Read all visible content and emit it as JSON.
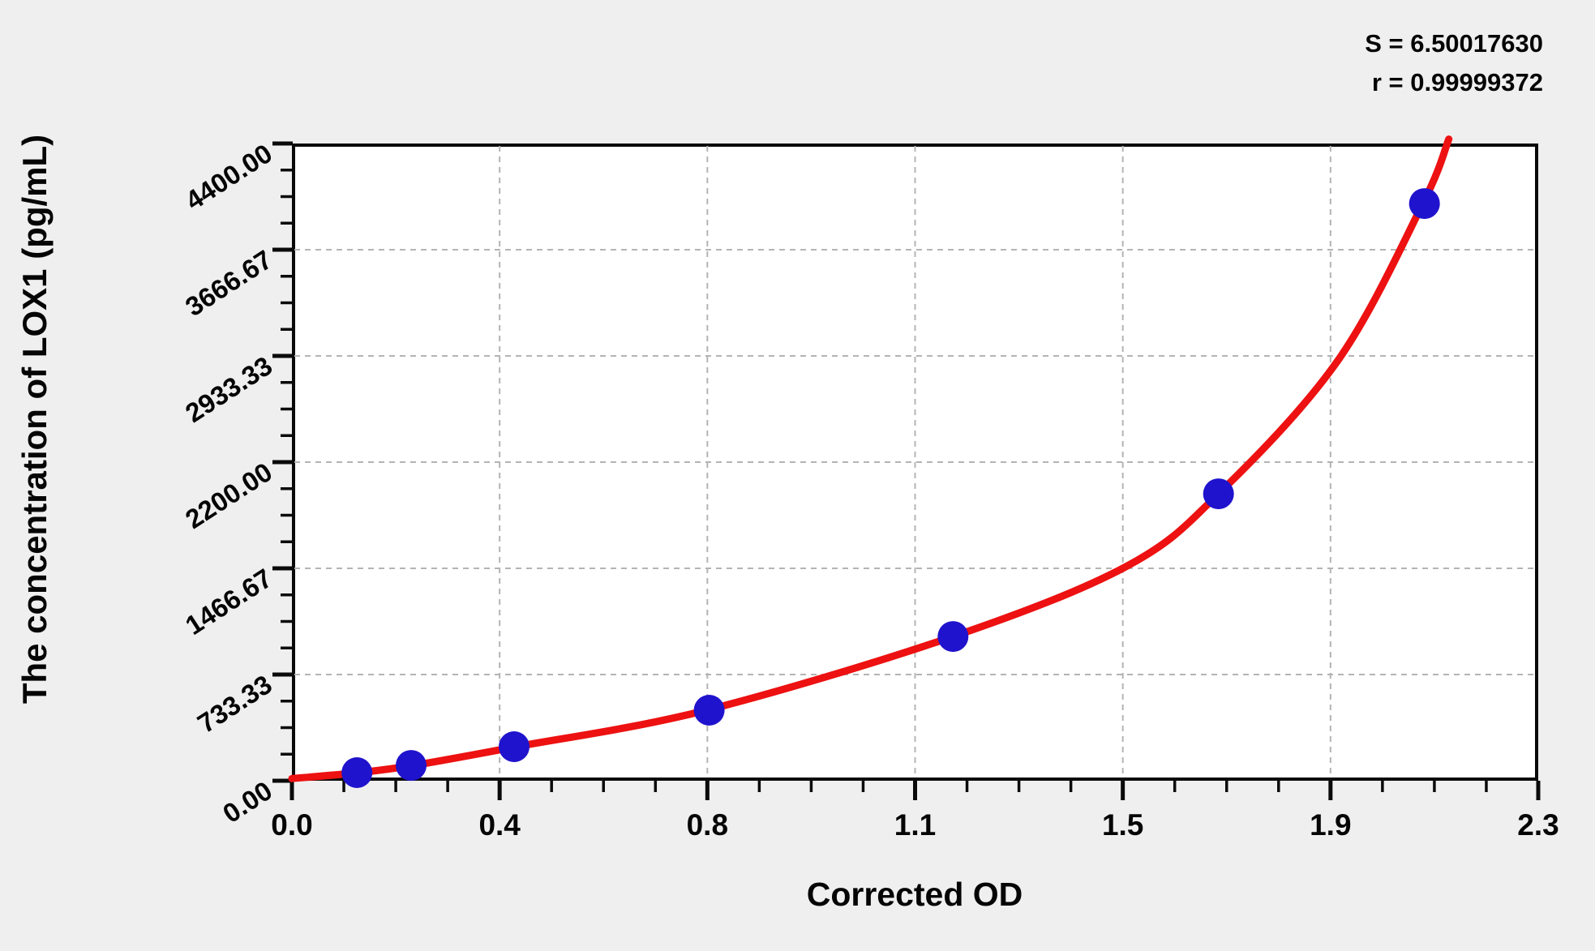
{
  "annotations": {
    "s_label": "S = 6.50017630",
    "r_label": "r = 0.99999372"
  },
  "chart_data": {
    "type": "scatter",
    "subtype": "standard-curve-with-fit-line",
    "title": "",
    "xlabel": "Corrected OD",
    "ylabel": "The concentration of LOX1 (pg/mL)",
    "xlim": [
      0,
      2.3
    ],
    "ylim": [
      0,
      4400
    ],
    "x_tick_labels": [
      "0.0",
      "0.4",
      "0.8",
      "1.1",
      "1.5",
      "1.9",
      "2.3"
    ],
    "y_tick_labels": [
      "0.00",
      "733.33",
      "1466.67",
      "2200.00",
      "2933.33",
      "3666.67",
      "4400.00"
    ],
    "minor_ticks_per_major_interval": 3,
    "grid": "dashed-major",
    "legend": "none",
    "points": {
      "corrected_od": [
        0.12,
        0.22,
        0.41,
        0.77,
        1.22,
        1.71,
        2.09
      ],
      "concentration_pg_ml": [
        56,
        106,
        235,
        487,
        996,
        1981,
        3985
      ]
    },
    "fit": {
      "S": "6.50017630",
      "r": "0.99999372",
      "curve_anchor_points": [
        [
          0.0,
          15
        ],
        [
          0.123,
          56
        ],
        [
          0.224,
          106
        ],
        [
          0.414,
          235
        ],
        [
          0.765,
          487
        ],
        [
          1.22,
          996
        ],
        [
          1.54,
          1480
        ],
        [
          1.71,
          1981
        ],
        [
          1.93,
          2900
        ],
        [
          2.087,
          3985
        ],
        [
          2.135,
          4430
        ]
      ]
    },
    "colors": {
      "curve": "#ed1111",
      "points": "#2013cd",
      "grid": "#b4b4b4",
      "axis": "#0a0a0a",
      "plot_bg": "#ffffff",
      "page_bg": "#f0efef",
      "text": "#050505"
    }
  }
}
